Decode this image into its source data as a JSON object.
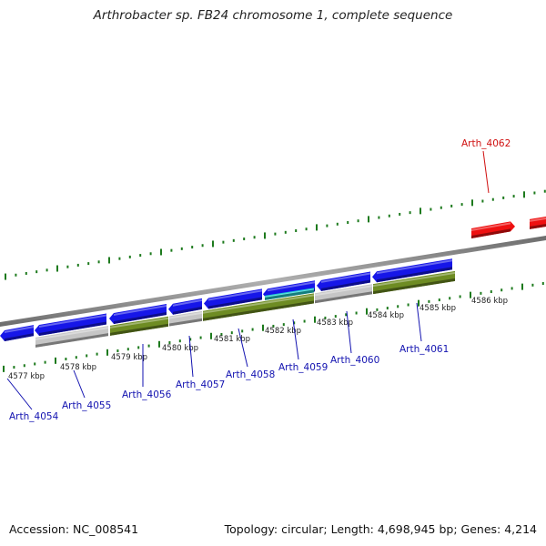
{
  "title": "Arthrobacter sp. FB24 chromosome 1, complete sequence",
  "footer": {
    "accession": "Accession: NC_008541",
    "topology": "Topology: circular; Length: 4,698,945 bp; Genes: 4,214"
  },
  "colors": {
    "forward_cds": "#1616e8",
    "rna_gene": "#22d0d0",
    "reverse_gene": "#6e8c23",
    "pseudo_gene": "#c6c6c6",
    "highlight_gene": "#ee1010",
    "label_default": "#1212b0",
    "label_highlight": "#d01010",
    "tick": "#1d7a1d",
    "backbone": "#8a8a8a"
  },
  "kbp_ticks": [
    "4577 kbp",
    "4578 kbp",
    "4579 kbp",
    "4580 kbp",
    "4581 kbp",
    "4582 kbp",
    "4583 kbp",
    "4584 kbp",
    "4585 kbp",
    "4586 kbp"
  ],
  "gene_labels": [
    {
      "name": "Arth_4054",
      "highlight": false
    },
    {
      "name": "Arth_4055",
      "highlight": false
    },
    {
      "name": "Arth_4056",
      "highlight": false
    },
    {
      "name": "Arth_4057",
      "highlight": false
    },
    {
      "name": "Arth_4058",
      "highlight": false
    },
    {
      "name": "Arth_4059",
      "highlight": false
    },
    {
      "name": "Arth_4060",
      "highlight": false
    },
    {
      "name": "Arth_4061",
      "highlight": false
    },
    {
      "name": "Arth_4062",
      "highlight": true
    }
  ]
}
